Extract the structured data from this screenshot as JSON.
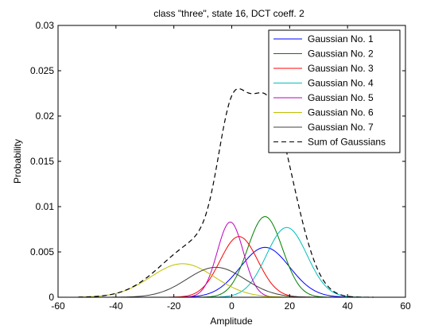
{
  "chart_data": {
    "type": "line",
    "title": "class \"three\", state 16, DCT coeff. 2",
    "xlabel": "Amplitude",
    "ylabel": "Probability",
    "xlim": [
      -60,
      60
    ],
    "ylim": [
      0,
      0.03
    ],
    "xticks": [
      -60,
      -40,
      -20,
      0,
      20,
      40,
      60
    ],
    "yticks": [
      0,
      0.005,
      0.01,
      0.015,
      0.02,
      0.025,
      0.03
    ],
    "x_tick_labels": [
      "-60",
      "-40",
      "-20",
      "0",
      "20",
      "40",
      "60"
    ],
    "y_tick_labels": [
      "0",
      "0.005",
      "0.01",
      "0.015",
      "0.02",
      "0.025",
      "0.03"
    ],
    "x_range_plotted": [
      -53,
      49
    ],
    "grid": false,
    "legend_position": "top-right",
    "series": [
      {
        "name": "Gaussian No. 1",
        "color": "#0000ff",
        "dash": "solid",
        "mean": 11.5,
        "std": 8.5,
        "peak": 0.0055
      },
      {
        "name": "Gaussian No. 2",
        "color": "#008000",
        "dash": "solid",
        "mean": 11.5,
        "std": 6.0,
        "peak": 0.0089
      },
      {
        "name": "Gaussian No. 3",
        "color": "#ff0000",
        "dash": "solid",
        "mean": 2.5,
        "std": 6.5,
        "peak": 0.0067
      },
      {
        "name": "Gaussian No. 4",
        "color": "#00bfbf",
        "dash": "solid",
        "mean": 19.0,
        "std": 7.0,
        "peak": 0.0077
      },
      {
        "name": "Gaussian No. 5",
        "color": "#bf00bf",
        "dash": "solid",
        "mean": -0.5,
        "std": 4.5,
        "peak": 0.0083
      },
      {
        "name": "Gaussian No. 6",
        "color": "#bfbf00",
        "dash": "solid",
        "mean": -17.0,
        "std": 11.0,
        "peak": 0.0037
      },
      {
        "name": "Gaussian No. 7",
        "color": "#404040",
        "dash": "solid",
        "mean": -5.5,
        "std": 10.0,
        "peak": 0.0033
      },
      {
        "name": "Sum of Gaussians",
        "color": "#000000",
        "dash": "dashed",
        "is_sum": true
      }
    ]
  }
}
